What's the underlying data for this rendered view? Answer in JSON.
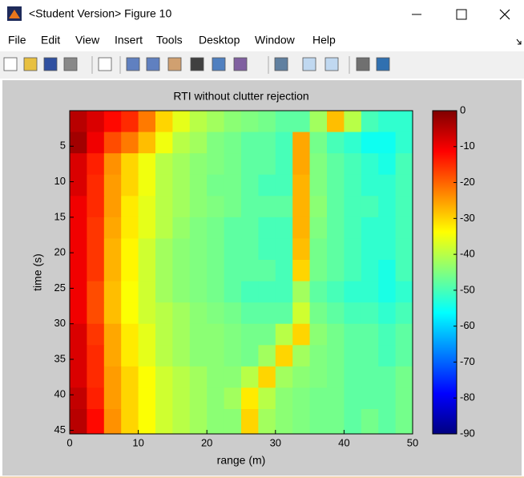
{
  "window": {
    "title": "<Student Version> Figure 10"
  },
  "menu": [
    "File",
    "Edit",
    "View",
    "Insert",
    "Tools",
    "Desktop",
    "Window",
    "Help"
  ],
  "chart_data": {
    "type": "heatmap",
    "title": "RTI without clutter rejection",
    "x_label": "range (m)",
    "y_label": "time (s)",
    "colormap": "jet",
    "y_reversed": true,
    "xlim": [
      0,
      50
    ],
    "xticks": [
      0,
      10,
      20,
      30,
      40,
      50
    ],
    "ylim": [
      0,
      45.5
    ],
    "yticks": [
      5,
      10,
      15,
      20,
      25,
      30,
      35,
      40,
      45
    ],
    "clim": [
      -90,
      0
    ],
    "cticks": [
      0,
      -10,
      -20,
      -30,
      -40,
      -50,
      -60,
      -70,
      -80,
      -90
    ],
    "x": [
      1.25,
      3.75,
      6.25,
      8.75,
      11.25,
      13.75,
      16.25,
      18.75,
      21.25,
      23.75,
      26.25,
      28.75,
      31.25,
      33.75,
      36.25,
      38.75,
      41.25,
      43.75,
      46.25,
      48.75
    ],
    "y": [
      1.5,
      4.5,
      7.5,
      10.5,
      13.5,
      16.5,
      19.5,
      22.5,
      25.5,
      28.5,
      31.5,
      34.5,
      37.5,
      40.5,
      43.5
    ],
    "z": [
      [
        -5,
        -8,
        -12,
        -15,
        -22,
        -30,
        -36,
        -40,
        -42,
        -44,
        -45,
        -46,
        -48,
        -48,
        -42,
        -28,
        -40,
        -50,
        -52,
        -52
      ],
      [
        -3,
        -10,
        -18,
        -22,
        -28,
        -35,
        -40,
        -42,
        -45,
        -46,
        -48,
        -48,
        -50,
        -26,
        -46,
        -50,
        -52,
        -55,
        -55,
        -52
      ],
      [
        -8,
        -14,
        -24,
        -30,
        -35,
        -40,
        -42,
        -44,
        -45,
        -46,
        -48,
        -48,
        -50,
        -26,
        -45,
        -48,
        -50,
        -52,
        -54,
        -50
      ],
      [
        -8,
        -15,
        -25,
        -30,
        -35,
        -40,
        -42,
        -44,
        -46,
        -46,
        -48,
        -50,
        -50,
        -27,
        -45,
        -48,
        -50,
        -52,
        -52,
        -50
      ],
      [
        -10,
        -15,
        -25,
        -32,
        -36,
        -40,
        -42,
        -44,
        -45,
        -46,
        -48,
        -48,
        -48,
        -27,
        -44,
        -48,
        -50,
        -50,
        -52,
        -50
      ],
      [
        -10,
        -16,
        -26,
        -32,
        -36,
        -40,
        -43,
        -45,
        -46,
        -48,
        -48,
        -50,
        -50,
        -27,
        -45,
        -48,
        -50,
        -52,
        -52,
        -50
      ],
      [
        -10,
        -16,
        -27,
        -33,
        -38,
        -42,
        -44,
        -45,
        -46,
        -48,
        -48,
        -50,
        -50,
        -28,
        -46,
        -48,
        -50,
        -52,
        -52,
        -50
      ],
      [
        -10,
        -16,
        -27,
        -33,
        -38,
        -42,
        -44,
        -45,
        -46,
        -48,
        -48,
        -48,
        -50,
        -30,
        -46,
        -48,
        -50,
        -52,
        -54,
        -50
      ],
      [
        -10,
        -18,
        -28,
        -34,
        -38,
        -42,
        -44,
        -45,
        -46,
        -48,
        -50,
        -50,
        -50,
        -42,
        -48,
        -50,
        -52,
        -52,
        -54,
        -52
      ],
      [
        -10,
        -18,
        -28,
        -34,
        -38,
        -40,
        -42,
        -44,
        -45,
        -46,
        -48,
        -48,
        -48,
        -38,
        -46,
        -48,
        -50,
        -50,
        -52,
        -50
      ],
      [
        -8,
        -16,
        -26,
        -32,
        -36,
        -40,
        -42,
        -44,
        -44,
        -45,
        -46,
        -46,
        -40,
        -30,
        -44,
        -46,
        -48,
        -48,
        -50,
        -48
      ],
      [
        -8,
        -15,
        -26,
        -32,
        -36,
        -40,
        -42,
        -44,
        -44,
        -45,
        -46,
        -42,
        -30,
        -42,
        -45,
        -46,
        -48,
        -48,
        -50,
        -48
      ],
      [
        -8,
        -15,
        -25,
        -30,
        -34,
        -38,
        -40,
        -42,
        -44,
        -44,
        -40,
        -30,
        -42,
        -44,
        -45,
        -46,
        -48,
        -48,
        -48,
        -46
      ],
      [
        -6,
        -14,
        -25,
        -30,
        -34,
        -38,
        -40,
        -42,
        -44,
        -42,
        -32,
        -40,
        -44,
        -45,
        -46,
        -46,
        -48,
        -48,
        -48,
        -46
      ],
      [
        -5,
        -12,
        -24,
        -30,
        -34,
        -38,
        -40,
        -42,
        -44,
        -44,
        -30,
        -42,
        -44,
        -45,
        -46,
        -46,
        -48,
        -46,
        -48,
        -46
      ]
    ]
  }
}
